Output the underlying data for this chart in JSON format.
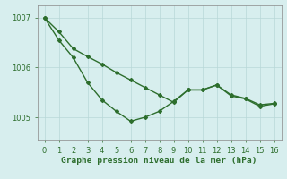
{
  "title": "Graphe pression niveau de la mer (hPa)",
  "background_color": "#d7eeee",
  "line_color": "#2d6e2d",
  "grid_color": "#b8d8d8",
  "xlim": [
    -0.5,
    16.5
  ],
  "ylim": [
    1004.55,
    1007.25
  ],
  "yticks": [
    1005,
    1006,
    1007
  ],
  "xticks": [
    0,
    1,
    2,
    3,
    4,
    5,
    6,
    7,
    8,
    9,
    10,
    11,
    12,
    13,
    14,
    15,
    16
  ],
  "series1_x": [
    0,
    1,
    2,
    3,
    4,
    5,
    6,
    7,
    8,
    9,
    10,
    11,
    12,
    13,
    14,
    15,
    16
  ],
  "series1_y": [
    1007.0,
    1006.72,
    1006.38,
    1006.22,
    1006.07,
    1005.9,
    1005.75,
    1005.6,
    1005.45,
    1005.3,
    1005.55,
    1005.55,
    1005.65,
    1005.45,
    1005.38,
    1005.25,
    1005.28
  ],
  "series2_x": [
    0,
    1,
    2,
    3,
    4,
    5,
    6,
    7,
    8,
    9,
    10,
    11,
    12,
    13,
    14,
    15,
    16
  ],
  "series2_y": [
    1007.0,
    1006.55,
    1006.2,
    1005.7,
    1005.35,
    1005.12,
    1004.92,
    1005.0,
    1005.12,
    1005.32,
    1005.55,
    1005.55,
    1005.65,
    1005.43,
    1005.37,
    1005.22,
    1005.27
  ],
  "marker": "D",
  "marker_size": 2.0,
  "linewidth": 1.0,
  "tick_fontsize": 6,
  "title_fontsize": 6.8,
  "title_color": "#2d6e2d",
  "tick_color": "#2d6e2d",
  "spine_color": "#888888"
}
